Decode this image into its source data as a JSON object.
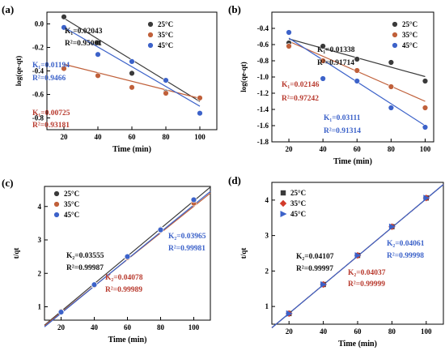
{
  "chart_data": [
    {
      "type": "scatter",
      "panel": "(a)",
      "xlabel": "Time (min)",
      "ylabel": "log(qe-qt)",
      "xlim": [
        10,
        110
      ],
      "ylim": [
        -0.9,
        0.1
      ],
      "xticks": [
        20,
        40,
        60,
        80,
        100
      ],
      "yticks": [
        0.0,
        -0.2,
        -0.4,
        -0.6,
        -0.8
      ],
      "xtick_labels": [
        "20",
        "40",
        "60",
        "80",
        "100"
      ],
      "ytick_labels": [
        "0.0",
        "-0.2",
        "-0.4",
        "-0.6",
        "-0.8"
      ],
      "legend_position": "top-right",
      "x": [
        20,
        40,
        60,
        80,
        100
      ],
      "series": [
        {
          "name": "25°C",
          "color": "#3a3a3a",
          "values": [
            0.06,
            -0.16,
            -0.42,
            -0.58,
            -0.63
          ],
          "fit": [
            0.0483,
            -0.6603
          ]
        },
        {
          "name": "35°C",
          "color": "#c0603a",
          "values": [
            -0.38,
            -0.44,
            -0.54,
            -0.59,
            -0.63
          ],
          "fit": [
            -0.343,
            -0.6335
          ]
        },
        {
          "name": "45°C",
          "color": "#3c62c9",
          "values": [
            -0.03,
            -0.26,
            -0.32,
            -0.48,
            -0.76
          ],
          "fit": [
            -0.0283,
            -0.7003
          ]
        }
      ],
      "annotations": [
        {
          "text": "K₁=0.02043",
          "color": "#111111"
        },
        {
          "text": "R²=0.95001",
          "color": "#111111"
        },
        {
          "text": "K₁=0.01194",
          "color": "#3c62c9"
        },
        {
          "text": "R²=0.9466",
          "color": "#3c62c9"
        },
        {
          "text": "K₁=0.00725",
          "color": "#b83a2e"
        },
        {
          "text": "R²=0.93181",
          "color": "#b83a2e"
        }
      ]
    },
    {
      "type": "scatter",
      "panel": "(b)",
      "xlabel": "Time (min)",
      "ylabel": "log(qe-qt)",
      "xlim": [
        10,
        105
      ],
      "ylim": [
        -1.8,
        -0.2
      ],
      "xticks": [
        20,
        40,
        60,
        80,
        100
      ],
      "yticks": [
        -0.4,
        -0.6,
        -0.8,
        -1.0,
        -1.2,
        -1.4,
        -1.6,
        -1.8
      ],
      "xtick_labels": [
        "20",
        "40",
        "60",
        "80",
        "100"
      ],
      "ytick_labels": [
        "-0.4",
        "-0.6",
        "-0.8",
        "-1.0",
        "-1.2",
        "-1.4",
        "-1.6",
        "-1.8"
      ],
      "legend_position": "top-right",
      "x": [
        20,
        40,
        60,
        80,
        100
      ],
      "series": [
        {
          "name": "25°C",
          "color": "#3a3a3a",
          "values": [
            -0.58,
            -0.62,
            -0.78,
            -0.82,
            -1.05
          ],
          "fit": [
            -0.53,
            -0.995
          ]
        },
        {
          "name": "35°C",
          "color": "#c0603a",
          "values": [
            -0.62,
            -0.8,
            -0.92,
            -1.12,
            -1.38
          ],
          "fit": [
            -0.56,
            -1.3
          ]
        },
        {
          "name": "45°C",
          "color": "#3c62c9",
          "values": [
            -0.45,
            -1.02,
            -1.05,
            -1.38,
            -1.62
          ],
          "fit": [
            -0.52,
            -1.6
          ]
        }
      ],
      "annotations": [
        {
          "text": "K₁=0.01338",
          "color": "#111111"
        },
        {
          "text": "R²=0.91714",
          "color": "#111111"
        },
        {
          "text": "K₁=0.02146",
          "color": "#b83a2e"
        },
        {
          "text": "R²=0.97242",
          "color": "#b83a2e"
        },
        {
          "text": "K₁=0.03111",
          "color": "#3c62c9"
        },
        {
          "text": "R²=0.91314",
          "color": "#3c62c9"
        }
      ]
    },
    {
      "type": "scatter",
      "panel": "(c)",
      "xlabel": "Time (min)",
      "ylabel": "t/qt",
      "xlim": [
        10,
        110
      ],
      "ylim": [
        0.6,
        4.6
      ],
      "xticks": [
        20,
        40,
        60,
        80,
        100
      ],
      "yticks": [
        1,
        2,
        3,
        4
      ],
      "xtick_labels": [
        "20",
        "40",
        "60",
        "80",
        "100"
      ],
      "ytick_labels": [
        "1",
        "2",
        "3",
        "4"
      ],
      "legend_position": "top-left",
      "x": [
        20,
        40,
        60,
        80,
        100
      ],
      "series": [
        {
          "name": "25°C",
          "color": "#3a3a3a",
          "values": [
            0.85,
            1.66,
            2.48,
            3.32,
            4.15
          ],
          "fit": [
            [
              10,
              0.45
            ],
            [
              110,
              4.58
            ]
          ]
        },
        {
          "name": "35°C",
          "color": "#c0603a",
          "values": [
            0.86,
            1.64,
            2.47,
            3.28,
            4.1
          ],
          "fit": [
            [
              10,
              0.43
            ],
            [
              110,
              4.4
            ]
          ]
        },
        {
          "name": "45°C",
          "color": "#3c62c9",
          "values": [
            0.84,
            1.66,
            2.5,
            3.3,
            4.2
          ],
          "fit": [
            [
              10,
              0.4
            ],
            [
              110,
              4.45
            ]
          ]
        }
      ],
      "annotations": [
        {
          "text": "K₂=0.03555",
          "color": "#111111"
        },
        {
          "text": "R²=0.99987",
          "color": "#111111"
        },
        {
          "text": "K₂=0.04078",
          "color": "#b83a2e"
        },
        {
          "text": "R²=0.99989",
          "color": "#b83a2e"
        },
        {
          "text": "K₂=0.03965",
          "color": "#3c62c9"
        },
        {
          "text": "R²=0.99981",
          "color": "#3c62c9"
        }
      ]
    },
    {
      "type": "scatter",
      "panel": "(d)",
      "xlabel": "Time (min)",
      "ylabel": "t/qt",
      "xlim": [
        10,
        110
      ],
      "ylim": [
        0.5,
        4.5
      ],
      "xticks": [
        20,
        40,
        60,
        80,
        100
      ],
      "yticks": [
        1,
        2,
        3,
        4
      ],
      "xtick_labels": [
        "20",
        "40",
        "60",
        "80",
        "100"
      ],
      "ytick_labels": [
        "1",
        "2",
        "3",
        "4"
      ],
      "legend_position": "top-left",
      "x": [
        20,
        40,
        60,
        80,
        100
      ],
      "series": [
        {
          "name": "25°C",
          "color": "#3a3a3a",
          "marker": "square",
          "values": [
            0.8,
            1.62,
            2.44,
            3.25,
            4.06
          ],
          "fit": [
            [
              10,
              0.4
            ],
            [
              110,
              4.44
            ]
          ]
        },
        {
          "name": "35°C",
          "color": "#d23a2a",
          "marker": "diamond",
          "values": [
            0.8,
            1.62,
            2.44,
            3.25,
            4.06
          ],
          "fit": [
            [
              10,
              0.4
            ],
            [
              110,
              4.44
            ]
          ]
        },
        {
          "name": "45°C",
          "color": "#3c62c9",
          "marker": "triangle",
          "values": [
            0.8,
            1.62,
            2.44,
            3.25,
            4.06
          ],
          "fit": [
            [
              10,
              0.4
            ],
            [
              110,
              4.44
            ]
          ]
        }
      ],
      "annotations": [
        {
          "text": "K₂=0.04107",
          "color": "#111111"
        },
        {
          "text": "R²=0.99997",
          "color": "#111111"
        },
        {
          "text": "K₂=0.04037",
          "color": "#b83a2e"
        },
        {
          "text": "R²=0.99999",
          "color": "#b83a2e"
        },
        {
          "text": "K₂=0.04061",
          "color": "#3c62c9"
        },
        {
          "text": "R²=0.99998",
          "color": "#3c62c9"
        }
      ]
    }
  ]
}
